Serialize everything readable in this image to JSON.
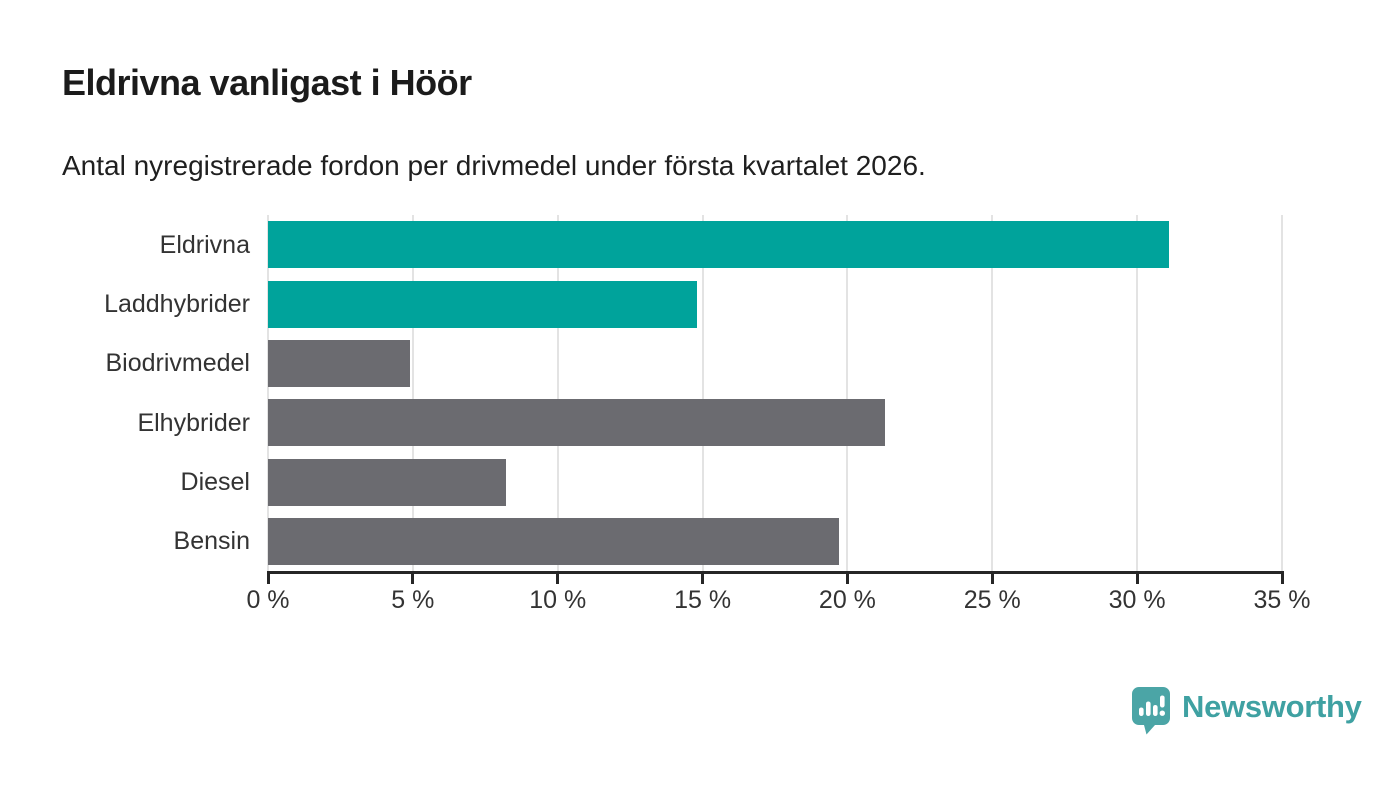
{
  "header": {
    "title": "Eldrivna vanligast i Höör",
    "subtitle": "Antal nyregistrerade fordon per drivmedel under första kvartalet 2026."
  },
  "chart_data": {
    "type": "bar",
    "orientation": "horizontal",
    "title": "Eldrivna vanligast i Höör",
    "subtitle": "Antal nyregistrerade fordon per drivmedel under första kvartalet 2026.",
    "categories": [
      "Eldrivna",
      "Laddhybrider",
      "Biodrivmedel",
      "Elhybrider",
      "Diesel",
      "Bensin"
    ],
    "values": [
      31.1,
      14.8,
      4.9,
      21.3,
      8.2,
      19.7
    ],
    "unit": "%",
    "bar_colors": [
      "#00a39b",
      "#00a39b",
      "#6b6b70",
      "#6b6b70",
      "#6b6b70",
      "#6b6b70"
    ],
    "xlim": [
      0,
      35
    ],
    "xticks": [
      0,
      5,
      10,
      15,
      20,
      25,
      30,
      35
    ],
    "xtick_labels": [
      "0 %",
      "5 %",
      "10 %",
      "15 %",
      "20 %",
      "25 %",
      "30 %",
      "35 %"
    ],
    "grid": "vertical",
    "legend": "none"
  },
  "branding": {
    "logo_text": "Newsworthy",
    "logo_color": "#3fa1a2",
    "icon_color": "#4ba5a6",
    "icon_name": "newsworthy-chart-bubble-icon"
  },
  "colors": {
    "background": "#ffffff",
    "teal": "#00a39b",
    "gray": "#6b6b70",
    "grid": "#e3e3e3",
    "axis": "#262626",
    "text": "#333333"
  }
}
